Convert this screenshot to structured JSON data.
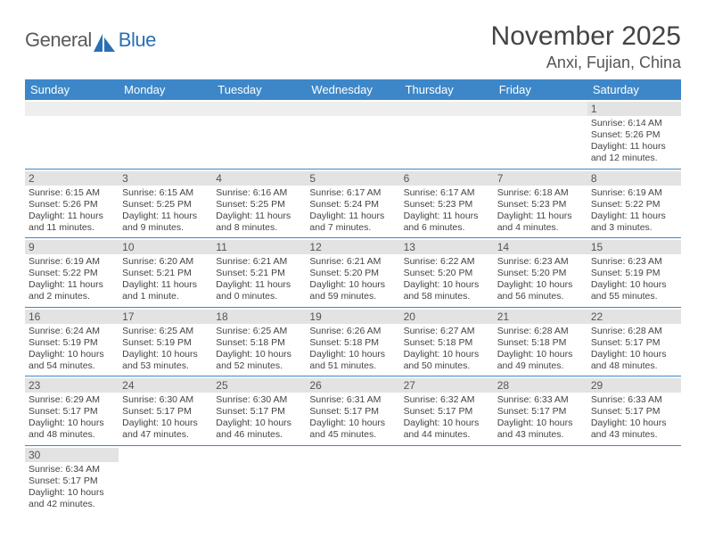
{
  "logo": {
    "text1": "General",
    "text2": "Blue"
  },
  "title": "November 2025",
  "location": "Anxi, Fujian, China",
  "colors": {
    "header_bg": "#3d87c9",
    "header_text": "#ffffff",
    "daynum_bg": "#e3e3e3",
    "row_border": "#3d87c9",
    "logo_gray": "#5a5a5a",
    "logo_blue": "#2b6fb3",
    "body_text": "#444444"
  },
  "typography": {
    "title_fontsize": 30,
    "location_fontsize": 18,
    "dow_fontsize": 13,
    "daynum_fontsize": 12,
    "body_fontsize": 10.5
  },
  "dow": [
    "Sunday",
    "Monday",
    "Tuesday",
    "Wednesday",
    "Thursday",
    "Friday",
    "Saturday"
  ],
  "weeks": [
    [
      null,
      null,
      null,
      null,
      null,
      null,
      {
        "n": "1",
        "sr": "Sunrise: 6:14 AM",
        "ss": "Sunset: 5:26 PM",
        "dl1": "Daylight: 11 hours",
        "dl2": "and 12 minutes."
      }
    ],
    [
      {
        "n": "2",
        "sr": "Sunrise: 6:15 AM",
        "ss": "Sunset: 5:26 PM",
        "dl1": "Daylight: 11 hours",
        "dl2": "and 11 minutes."
      },
      {
        "n": "3",
        "sr": "Sunrise: 6:15 AM",
        "ss": "Sunset: 5:25 PM",
        "dl1": "Daylight: 11 hours",
        "dl2": "and 9 minutes."
      },
      {
        "n": "4",
        "sr": "Sunrise: 6:16 AM",
        "ss": "Sunset: 5:25 PM",
        "dl1": "Daylight: 11 hours",
        "dl2": "and 8 minutes."
      },
      {
        "n": "5",
        "sr": "Sunrise: 6:17 AM",
        "ss": "Sunset: 5:24 PM",
        "dl1": "Daylight: 11 hours",
        "dl2": "and 7 minutes."
      },
      {
        "n": "6",
        "sr": "Sunrise: 6:17 AM",
        "ss": "Sunset: 5:23 PM",
        "dl1": "Daylight: 11 hours",
        "dl2": "and 6 minutes."
      },
      {
        "n": "7",
        "sr": "Sunrise: 6:18 AM",
        "ss": "Sunset: 5:23 PM",
        "dl1": "Daylight: 11 hours",
        "dl2": "and 4 minutes."
      },
      {
        "n": "8",
        "sr": "Sunrise: 6:19 AM",
        "ss": "Sunset: 5:22 PM",
        "dl1": "Daylight: 11 hours",
        "dl2": "and 3 minutes."
      }
    ],
    [
      {
        "n": "9",
        "sr": "Sunrise: 6:19 AM",
        "ss": "Sunset: 5:22 PM",
        "dl1": "Daylight: 11 hours",
        "dl2": "and 2 minutes."
      },
      {
        "n": "10",
        "sr": "Sunrise: 6:20 AM",
        "ss": "Sunset: 5:21 PM",
        "dl1": "Daylight: 11 hours",
        "dl2": "and 1 minute."
      },
      {
        "n": "11",
        "sr": "Sunrise: 6:21 AM",
        "ss": "Sunset: 5:21 PM",
        "dl1": "Daylight: 11 hours",
        "dl2": "and 0 minutes."
      },
      {
        "n": "12",
        "sr": "Sunrise: 6:21 AM",
        "ss": "Sunset: 5:20 PM",
        "dl1": "Daylight: 10 hours",
        "dl2": "and 59 minutes."
      },
      {
        "n": "13",
        "sr": "Sunrise: 6:22 AM",
        "ss": "Sunset: 5:20 PM",
        "dl1": "Daylight: 10 hours",
        "dl2": "and 58 minutes."
      },
      {
        "n": "14",
        "sr": "Sunrise: 6:23 AM",
        "ss": "Sunset: 5:20 PM",
        "dl1": "Daylight: 10 hours",
        "dl2": "and 56 minutes."
      },
      {
        "n": "15",
        "sr": "Sunrise: 6:23 AM",
        "ss": "Sunset: 5:19 PM",
        "dl1": "Daylight: 10 hours",
        "dl2": "and 55 minutes."
      }
    ],
    [
      {
        "n": "16",
        "sr": "Sunrise: 6:24 AM",
        "ss": "Sunset: 5:19 PM",
        "dl1": "Daylight: 10 hours",
        "dl2": "and 54 minutes."
      },
      {
        "n": "17",
        "sr": "Sunrise: 6:25 AM",
        "ss": "Sunset: 5:19 PM",
        "dl1": "Daylight: 10 hours",
        "dl2": "and 53 minutes."
      },
      {
        "n": "18",
        "sr": "Sunrise: 6:25 AM",
        "ss": "Sunset: 5:18 PM",
        "dl1": "Daylight: 10 hours",
        "dl2": "and 52 minutes."
      },
      {
        "n": "19",
        "sr": "Sunrise: 6:26 AM",
        "ss": "Sunset: 5:18 PM",
        "dl1": "Daylight: 10 hours",
        "dl2": "and 51 minutes."
      },
      {
        "n": "20",
        "sr": "Sunrise: 6:27 AM",
        "ss": "Sunset: 5:18 PM",
        "dl1": "Daylight: 10 hours",
        "dl2": "and 50 minutes."
      },
      {
        "n": "21",
        "sr": "Sunrise: 6:28 AM",
        "ss": "Sunset: 5:18 PM",
        "dl1": "Daylight: 10 hours",
        "dl2": "and 49 minutes."
      },
      {
        "n": "22",
        "sr": "Sunrise: 6:28 AM",
        "ss": "Sunset: 5:17 PM",
        "dl1": "Daylight: 10 hours",
        "dl2": "and 48 minutes."
      }
    ],
    [
      {
        "n": "23",
        "sr": "Sunrise: 6:29 AM",
        "ss": "Sunset: 5:17 PM",
        "dl1": "Daylight: 10 hours",
        "dl2": "and 48 minutes."
      },
      {
        "n": "24",
        "sr": "Sunrise: 6:30 AM",
        "ss": "Sunset: 5:17 PM",
        "dl1": "Daylight: 10 hours",
        "dl2": "and 47 minutes."
      },
      {
        "n": "25",
        "sr": "Sunrise: 6:30 AM",
        "ss": "Sunset: 5:17 PM",
        "dl1": "Daylight: 10 hours",
        "dl2": "and 46 minutes."
      },
      {
        "n": "26",
        "sr": "Sunrise: 6:31 AM",
        "ss": "Sunset: 5:17 PM",
        "dl1": "Daylight: 10 hours",
        "dl2": "and 45 minutes."
      },
      {
        "n": "27",
        "sr": "Sunrise: 6:32 AM",
        "ss": "Sunset: 5:17 PM",
        "dl1": "Daylight: 10 hours",
        "dl2": "and 44 minutes."
      },
      {
        "n": "28",
        "sr": "Sunrise: 6:33 AM",
        "ss": "Sunset: 5:17 PM",
        "dl1": "Daylight: 10 hours",
        "dl2": "and 43 minutes."
      },
      {
        "n": "29",
        "sr": "Sunrise: 6:33 AM",
        "ss": "Sunset: 5:17 PM",
        "dl1": "Daylight: 10 hours",
        "dl2": "and 43 minutes."
      }
    ],
    [
      {
        "n": "30",
        "sr": "Sunrise: 6:34 AM",
        "ss": "Sunset: 5:17 PM",
        "dl1": "Daylight: 10 hours",
        "dl2": "and 42 minutes."
      },
      null,
      null,
      null,
      null,
      null,
      null
    ]
  ]
}
